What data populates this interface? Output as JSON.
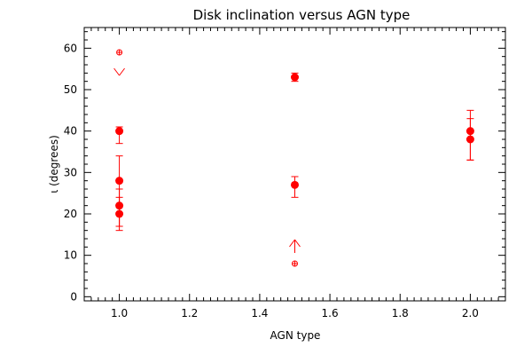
{
  "chart_data": {
    "type": "scatter",
    "title": "Disk inclination versus AGN type",
    "xlabel": "AGN type",
    "ylabel": "ι (degrees)",
    "xlim": [
      0.9,
      2.1
    ],
    "ylim": [
      -1,
      65
    ],
    "x_ticks": [
      1.0,
      1.2,
      1.4,
      1.6,
      1.8,
      2.0
    ],
    "x_tick_labels": [
      "1.0",
      "1.2",
      "1.4",
      "1.6",
      "1.8",
      "2.0"
    ],
    "y_ticks": [
      0,
      10,
      20,
      30,
      40,
      50,
      60
    ],
    "y_tick_labels": [
      "0",
      "10",
      "20",
      "30",
      "40",
      "50",
      "60"
    ],
    "color": "#ff0000",
    "points": [
      {
        "x": 1.0,
        "y": 40,
        "err_low": 3,
        "err_high": 1
      },
      {
        "x": 1.0,
        "y": 28,
        "err_low": 12,
        "err_high": 6
      },
      {
        "x": 1.0,
        "y": 22,
        "err_low": 5,
        "err_high": 4
      },
      {
        "x": 1.0,
        "y": 20,
        "err_low": 3,
        "err_high": 4
      },
      {
        "x": 1.5,
        "y": 53,
        "err_low": 1,
        "err_high": 1
      },
      {
        "x": 1.5,
        "y": 27,
        "err_low": 3,
        "err_high": 2
      },
      {
        "x": 2.0,
        "y": 40,
        "err_low": 7,
        "err_high": 5
      },
      {
        "x": 2.0,
        "y": 38,
        "err_low": 5,
        "err_high": 5
      }
    ],
    "limits": [
      {
        "x": 1.0,
        "y": 59,
        "direction": "upper"
      },
      {
        "x": 1.5,
        "y": 8,
        "direction": "lower"
      }
    ]
  }
}
